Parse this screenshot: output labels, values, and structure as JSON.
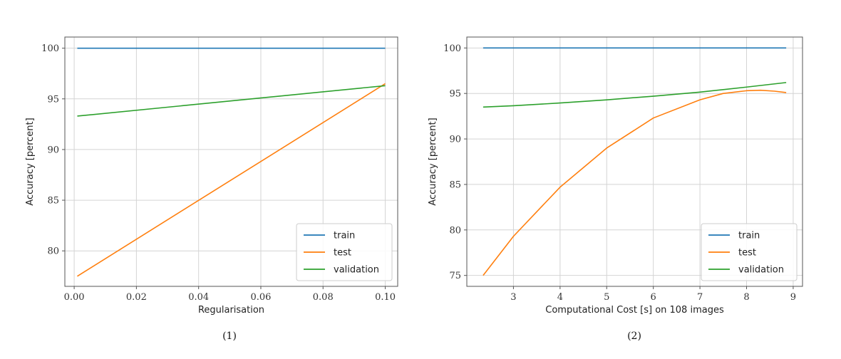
{
  "chart_data": [
    {
      "type": "line",
      "caption": "(1)",
      "xlabel": "Regularisation",
      "ylabel": "Accuracy [percent]",
      "xlim": [
        -0.003,
        0.104
      ],
      "ylim": [
        76.5,
        101.1
      ],
      "xticks": [
        0.0,
        0.02,
        0.04,
        0.06,
        0.08,
        0.1
      ],
      "xtick_labels": [
        "0.00",
        "0.02",
        "0.04",
        "0.06",
        "0.08",
        "0.10"
      ],
      "yticks": [
        80,
        85,
        90,
        95,
        100
      ],
      "ytick_labels": [
        "80",
        "85",
        "90",
        "95",
        "100"
      ],
      "grid": true,
      "legend_position": "bottom-right",
      "series": [
        {
          "name": "train",
          "color": "#1f77b4",
          "x": [
            0.001,
            0.1
          ],
          "y": [
            100,
            100
          ]
        },
        {
          "name": "test",
          "color": "#ff7f0e",
          "x": [
            0.001,
            0.1
          ],
          "y": [
            77.5,
            96.5
          ]
        },
        {
          "name": "validation",
          "color": "#2ca02c",
          "x": [
            0.001,
            0.1
          ],
          "y": [
            93.3,
            96.3
          ]
        }
      ]
    },
    {
      "type": "line",
      "caption": "(2)",
      "xlabel": "Computational Cost [s] on 108 images",
      "ylabel": "Accuracy [percent]",
      "xlim": [
        2.0,
        9.2
      ],
      "ylim": [
        73.8,
        101.2
      ],
      "xticks": [
        3,
        4,
        5,
        6,
        7,
        8,
        9
      ],
      "xtick_labels": [
        "3",
        "4",
        "5",
        "6",
        "7",
        "8",
        "9"
      ],
      "yticks": [
        75,
        80,
        85,
        90,
        95,
        100
      ],
      "ytick_labels": [
        "75",
        "80",
        "85",
        "90",
        "95",
        "100"
      ],
      "grid": true,
      "legend_position": "bottom-right",
      "series": [
        {
          "name": "train",
          "color": "#1f77b4",
          "x": [
            2.35,
            8.85
          ],
          "y": [
            100,
            100
          ]
        },
        {
          "name": "test",
          "color": "#ff7f0e",
          "x": [
            2.35,
            3.0,
            4.0,
            5.0,
            6.0,
            7.0,
            7.5,
            8.0,
            8.3,
            8.6,
            8.85
          ],
          "y": [
            75.0,
            79.3,
            84.7,
            89.0,
            92.3,
            94.3,
            95.0,
            95.3,
            95.35,
            95.25,
            95.1
          ]
        },
        {
          "name": "validation",
          "color": "#2ca02c",
          "x": [
            2.35,
            3.0,
            4.0,
            5.0,
            6.0,
            7.0,
            8.0,
            8.85
          ],
          "y": [
            93.5,
            93.65,
            93.95,
            94.3,
            94.7,
            95.15,
            95.7,
            96.2
          ]
        }
      ]
    }
  ]
}
